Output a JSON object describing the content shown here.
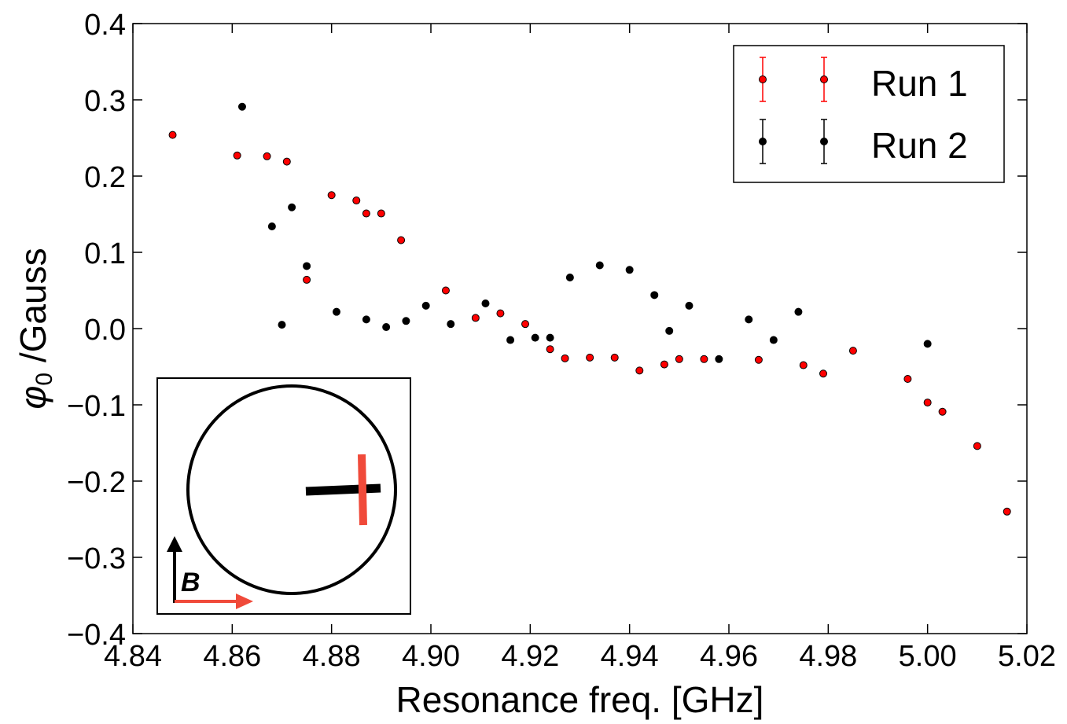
{
  "chart_data": {
    "type": "scatter",
    "title": "",
    "xlabel": "Resonance freq. [GHz]",
    "ylabel_symbol": "φ",
    "ylabel_subscript": "0",
    "ylabel_unit": " /Gauss",
    "xlim": [
      4.84,
      5.02
    ],
    "ylim": [
      -0.4,
      0.4
    ],
    "x_ticks": [
      4.84,
      4.86,
      4.88,
      4.9,
      4.92,
      4.94,
      4.96,
      4.98,
      5.0,
      5.02
    ],
    "x_tick_labels": [
      "4.84",
      "4.86",
      "4.88",
      "4.90",
      "4.92",
      "4.94",
      "4.96",
      "4.98",
      "5.00",
      "5.02"
    ],
    "y_ticks": [
      0.4,
      0.3,
      0.2,
      0.1,
      0.0,
      -0.1,
      -0.2,
      -0.3,
      -0.4
    ],
    "y_tick_labels": [
      "0.4",
      "0.3",
      "0.2",
      "0.1",
      "0.0",
      "−0.1",
      "−0.2",
      "−0.3",
      "−0.4"
    ],
    "legend_position": "top-right",
    "series": [
      {
        "name": "Run 1",
        "color": "#ff0000",
        "points": [
          [
            4.848,
            0.254
          ],
          [
            4.861,
            0.227
          ],
          [
            4.867,
            0.226
          ],
          [
            4.871,
            0.219
          ],
          [
            4.875,
            0.064
          ],
          [
            4.88,
            0.175
          ],
          [
            4.885,
            0.168
          ],
          [
            4.887,
            0.151
          ],
          [
            4.89,
            0.151
          ],
          [
            4.894,
            0.116
          ],
          [
            4.903,
            0.05
          ],
          [
            4.909,
            0.014
          ],
          [
            4.914,
            0.02
          ],
          [
            4.919,
            0.006
          ],
          [
            4.924,
            -0.027
          ],
          [
            4.927,
            -0.039
          ],
          [
            4.932,
            -0.038
          ],
          [
            4.937,
            -0.038
          ],
          [
            4.942,
            -0.055
          ],
          [
            4.947,
            -0.047
          ],
          [
            4.95,
            -0.04
          ],
          [
            4.955,
            -0.04
          ],
          [
            4.966,
            -0.041
          ],
          [
            4.975,
            -0.048
          ],
          [
            4.979,
            -0.059
          ],
          [
            4.985,
            -0.029
          ],
          [
            4.996,
            -0.066
          ],
          [
            5.0,
            -0.097
          ],
          [
            5.003,
            -0.109
          ],
          [
            5.01,
            -0.154
          ],
          [
            5.016,
            -0.24
          ]
        ]
      },
      {
        "name": "Run 2",
        "color": "#000000",
        "points": [
          [
            4.862,
            0.291
          ],
          [
            4.868,
            0.134
          ],
          [
            4.872,
            0.159
          ],
          [
            4.87,
            0.005
          ],
          [
            4.875,
            0.082
          ],
          [
            4.881,
            0.022
          ],
          [
            4.887,
            0.012
          ],
          [
            4.891,
            0.002
          ],
          [
            4.895,
            0.01
          ],
          [
            4.899,
            0.03
          ],
          [
            4.904,
            0.006
          ],
          [
            4.911,
            0.033
          ],
          [
            4.916,
            -0.015
          ],
          [
            4.921,
            -0.012
          ],
          [
            4.924,
            -0.012
          ],
          [
            4.928,
            0.067
          ],
          [
            4.934,
            0.083
          ],
          [
            4.94,
            0.077
          ],
          [
            4.945,
            0.044
          ],
          [
            4.948,
            -0.003
          ],
          [
            4.952,
            0.03
          ],
          [
            4.958,
            -0.04
          ],
          [
            4.964,
            0.012
          ],
          [
            4.969,
            -0.015
          ],
          [
            4.974,
            0.022
          ],
          [
            5.0,
            -0.02
          ]
        ]
      }
    ],
    "inset": {
      "field_label": "B",
      "colors": {
        "circle": "#000000",
        "black_bar": "#000000",
        "red_bar": "#f04a3a",
        "red_arrow": "#f04a3a"
      }
    }
  }
}
